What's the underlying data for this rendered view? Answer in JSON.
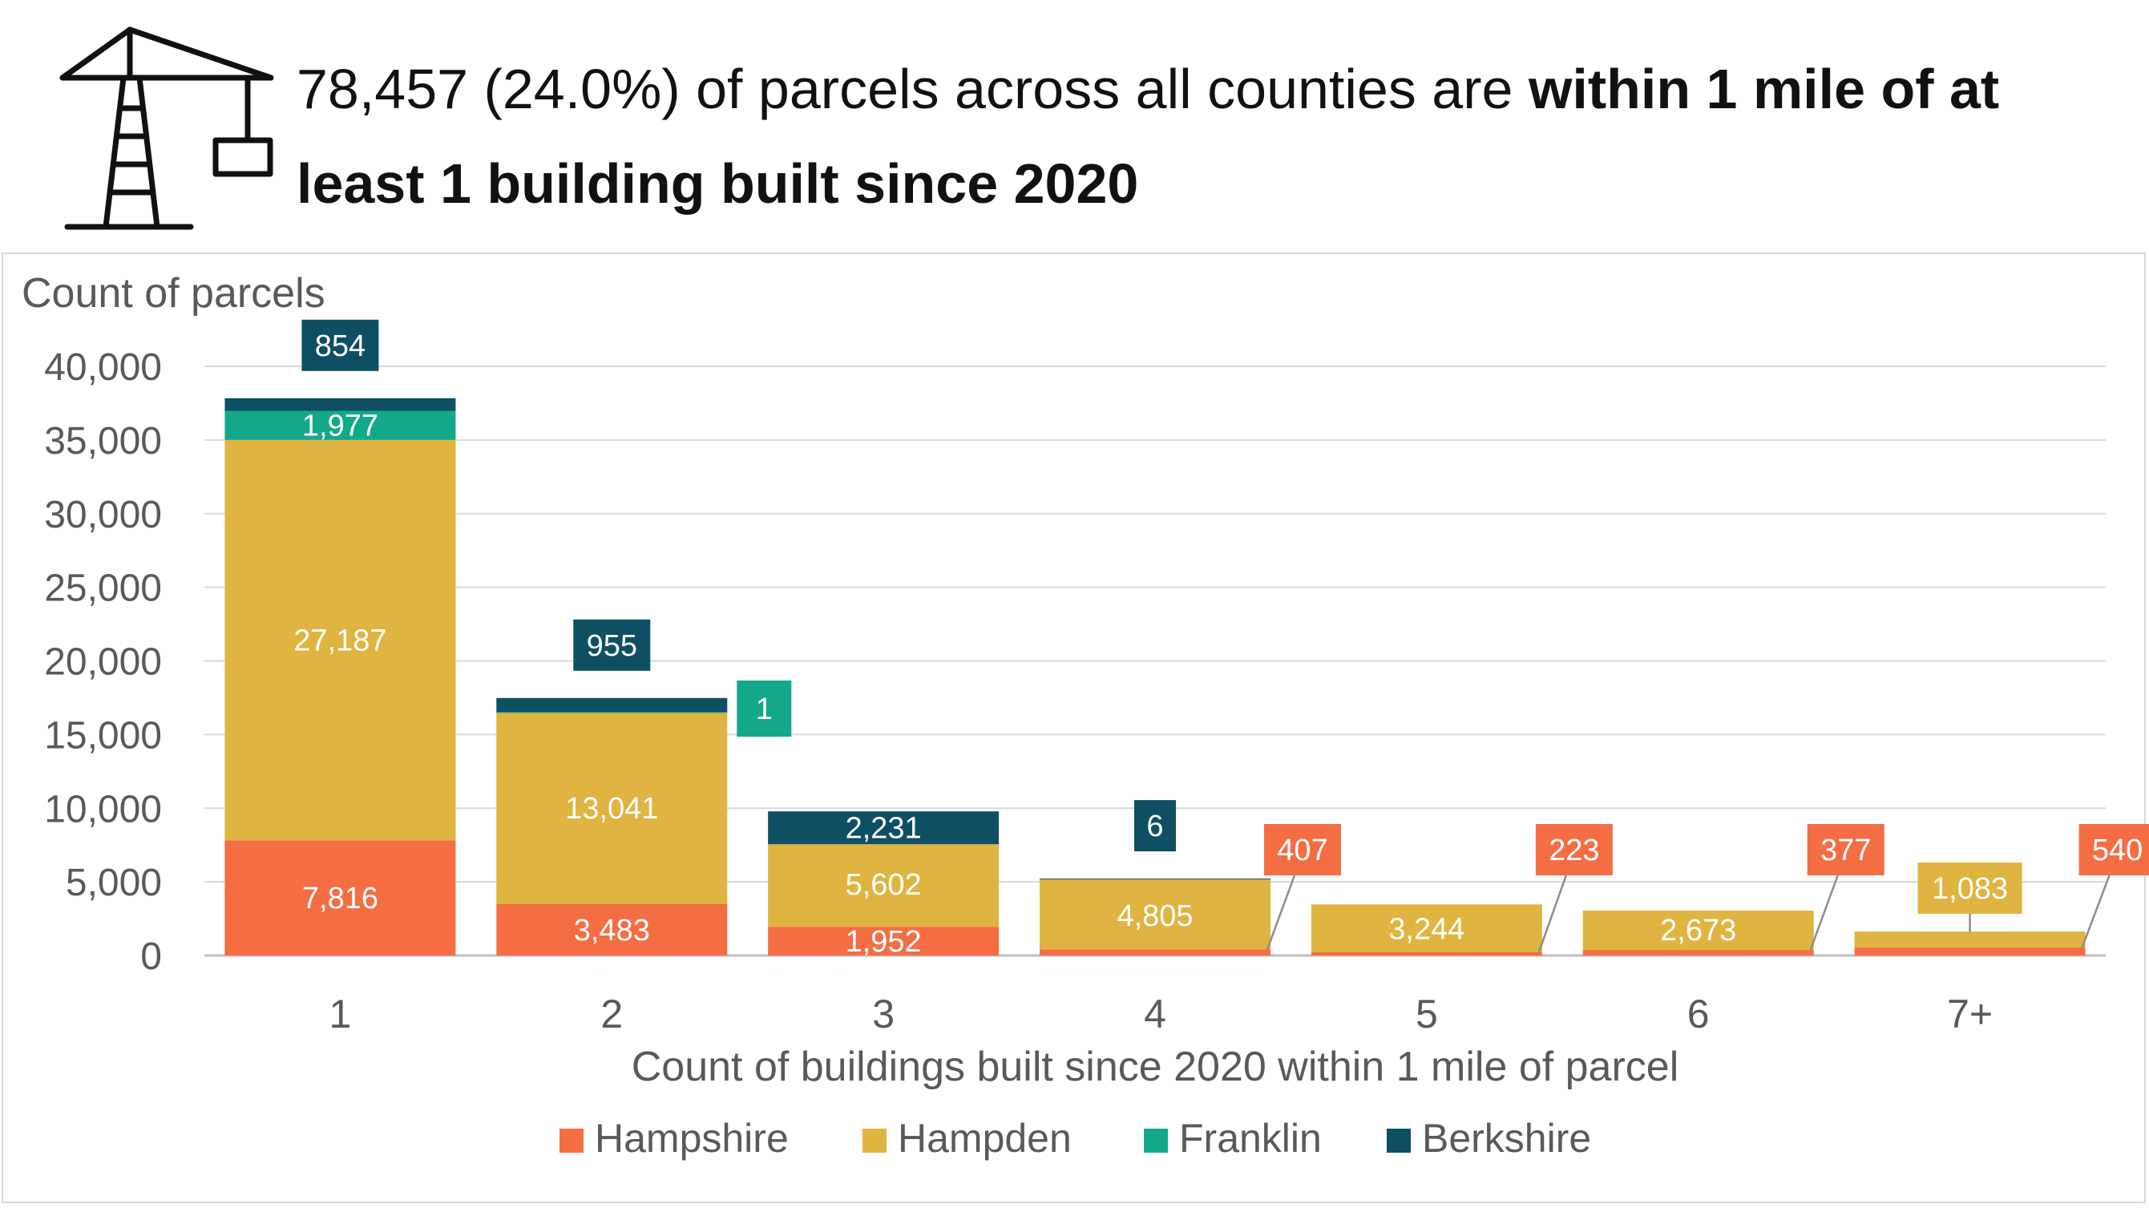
{
  "headline": {
    "normal": "78,457 (24.0%) of parcels across all counties are ",
    "bold": "within 1 mile of at least 1 building built since 2020"
  },
  "icon": "construction-crane-icon",
  "chart_data": {
    "type": "bar",
    "stacked": true,
    "title": "",
    "ylabel": "Count of parcels",
    "xlabel": "Count of buildings built since 2020 within 1 mile of parcel",
    "ylim": [
      0,
      40000
    ],
    "yticks": [
      0,
      5000,
      10000,
      15000,
      20000,
      25000,
      30000,
      35000,
      40000
    ],
    "ytick_labels": [
      "0",
      "5,000",
      "10,000",
      "15,000",
      "20,000",
      "25,000",
      "30,000",
      "35,000",
      "40,000"
    ],
    "grid": true,
    "legend_position": "bottom",
    "categories": [
      "1",
      "2",
      "3",
      "4",
      "5",
      "6",
      "7+"
    ],
    "series": [
      {
        "name": "Hampshire",
        "color": "#F46D43",
        "values": [
          7816,
          3483,
          1952,
          407,
          223,
          377,
          540
        ],
        "labels": [
          "7,816",
          "3,483",
          "1,952",
          "407",
          "223",
          "377",
          "540"
        ]
      },
      {
        "name": "Hampden",
        "color": "#E0B440",
        "values": [
          27187,
          13041,
          5602,
          4805,
          3244,
          2673,
          1083
        ],
        "labels": [
          "27,187",
          "13,041",
          "5,602",
          "4,805",
          "3,244",
          "2,673",
          "1,083"
        ]
      },
      {
        "name": "Franklin",
        "color": "#14A88A",
        "values": [
          1977,
          1,
          0,
          0,
          0,
          0,
          0
        ],
        "labels": [
          "1,977",
          "1",
          "",
          "",
          "",
          "",
          ""
        ]
      },
      {
        "name": "Berkshire",
        "color": "#0E4F63",
        "values": [
          854,
          955,
          2231,
          6,
          0,
          0,
          0
        ],
        "labels": [
          "854",
          "955",
          "2,231",
          "6",
          "",
          "",
          ""
        ]
      }
    ]
  }
}
